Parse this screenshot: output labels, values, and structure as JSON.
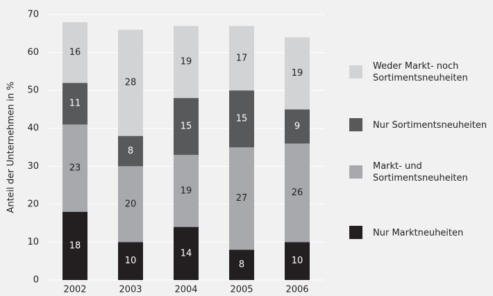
{
  "chart_data": {
    "type": "stacked_bar",
    "y_label": "Anteil der Unternehmen in %",
    "categories": [
      "2002",
      "2003",
      "2004",
      "2005",
      "2006"
    ],
    "series": [
      {
        "name": "Nur Marktneuheiten",
        "color": "#231f20",
        "label_color": "#ffffff",
        "values": [
          18,
          10,
          14,
          8,
          10
        ]
      },
      {
        "name": "Markt- und Sortimentsneuheiten",
        "color": "#a7a9ac",
        "label_color": "#231f20",
        "values": [
          23,
          20,
          19,
          27,
          26
        ]
      },
      {
        "name": "Nur Sortimentsneuheiten",
        "color": "#58595b",
        "label_color": "#ffffff",
        "values": [
          11,
          8,
          15,
          15,
          9
        ]
      },
      {
        "name": "Weder Markt- noch Sortimentsneuheiten",
        "color": "#d1d3d4",
        "label_color": "#231f20",
        "values": [
          16,
          28,
          19,
          17,
          19
        ]
      }
    ],
    "ylim": [
      0,
      70
    ],
    "yticks": [
      0,
      10,
      20,
      30,
      40,
      50,
      60,
      70
    ],
    "grid": true,
    "legend": "right"
  }
}
